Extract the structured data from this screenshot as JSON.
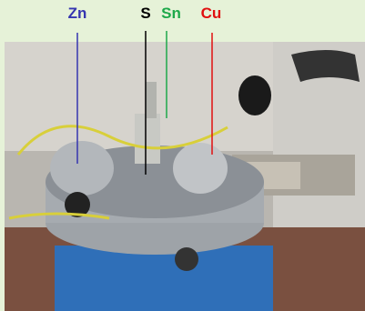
{
  "labels": [
    {
      "text": "Zn"
    },
    {
      "text": "S"
    },
    {
      "text": "Sn"
    },
    {
      "text": "Cu"
    }
  ]
}
